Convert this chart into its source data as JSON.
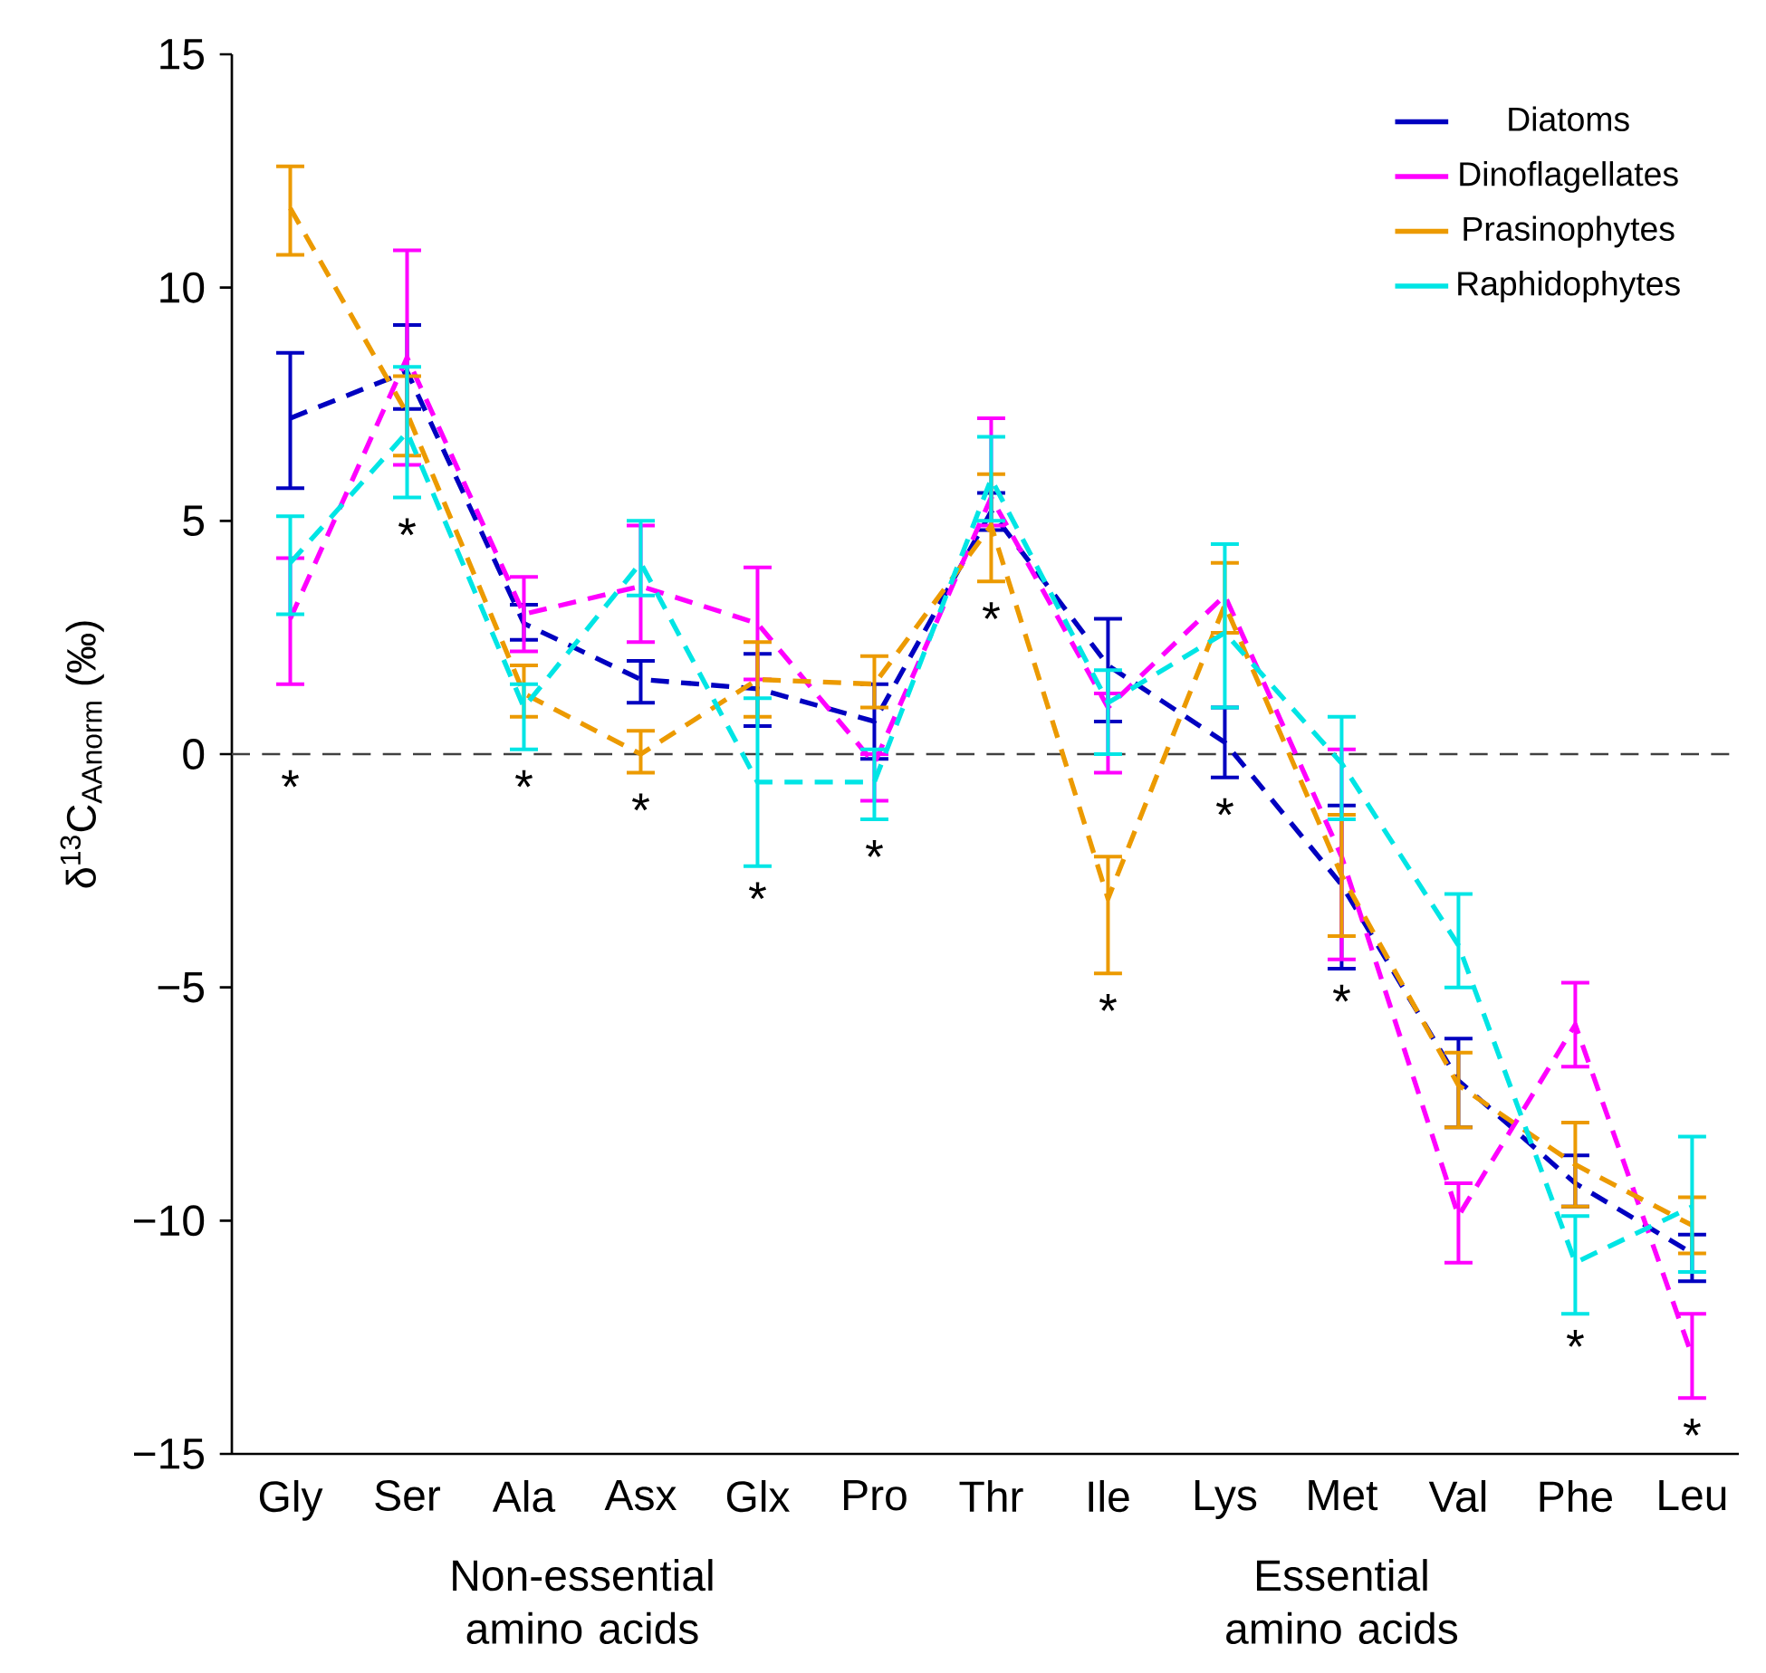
{
  "chart_data": {
    "type": "line",
    "ylabel": "δ$^{13}$C$_{AAnorm}$ (‰)",
    "categories": [
      "Gly",
      "Ser",
      "Ala",
      "Asx",
      "Glx",
      "Pro",
      "Thr",
      "Ile",
      "Lys",
      "Met",
      "Val",
      "Phe",
      "Leu"
    ],
    "ylim": [
      -15,
      15
    ],
    "yticks": [
      {
        "value": -15,
        "label": "−15"
      },
      {
        "value": -10,
        "label": "−10"
      },
      {
        "value": -5,
        "label": "−5"
      },
      0,
      5,
      10,
      15
    ],
    "line_style": "dashed",
    "marker": "none",
    "legend": "top right",
    "grid": false,
    "ref_lines": [
      {
        "axis": "y",
        "value": 0,
        "color": "#404040",
        "line_style": "dashed"
      }
    ],
    "series": [
      {
        "name": "Diatoms",
        "color": "#0000c0",
        "values": [
          7.2,
          8.2,
          2.8,
          1.6,
          1.4,
          0.7,
          5.2,
          1.9,
          0.25,
          -2.8,
          -7.0,
          -9.2,
          -10.7
        ],
        "errors": [
          [
            5.7,
            8.6
          ],
          [
            7.4,
            9.2
          ],
          [
            2.45,
            3.2
          ],
          [
            1.1,
            2.0
          ],
          [
            0.6,
            2.15
          ],
          [
            -0.1,
            1.5
          ],
          [
            4.8,
            5.6
          ],
          [
            0.7,
            2.9
          ],
          [
            -0.5,
            1.0
          ],
          [
            -4.6,
            -1.1
          ],
          [
            -8.0,
            -6.1
          ],
          [
            -9.7,
            -8.6
          ],
          [
            -11.3,
            -10.3
          ]
        ]
      },
      {
        "name": "Dinoflagellates",
        "color": "#ff00ff",
        "values": [
          2.9,
          8.5,
          3.0,
          3.6,
          2.8,
          -0.2,
          5.5,
          1.0,
          3.4,
          -2.2,
          -9.9,
          -5.8,
          -12.9
        ],
        "errors": [
          [
            1.5,
            4.2
          ],
          [
            6.2,
            10.8
          ],
          [
            2.2,
            3.8
          ],
          [
            2.4,
            4.9
          ],
          [
            1.6,
            4.0
          ],
          [
            -1.0,
            0.0
          ],
          [
            4.9,
            7.2
          ],
          [
            -0.4,
            1.3
          ],
          null,
          [
            -4.4,
            0.1
          ],
          [
            -10.9,
            -9.2
          ],
          [
            -6.7,
            -4.9
          ],
          [
            -13.8,
            -12.0
          ]
        ]
      },
      {
        "name": "Prasinophytes",
        "color": "#ec9a00",
        "values": [
          11.7,
          7.3,
          1.3,
          0.0,
          1.6,
          1.5,
          4.9,
          -3.1,
          3.2,
          -2.6,
          -7.1,
          -8.8,
          -10.1
        ],
        "errors": [
          [
            10.7,
            12.6
          ],
          [
            6.4,
            8.1
          ],
          [
            0.8,
            1.9
          ],
          [
            -0.4,
            0.5
          ],
          [
            0.8,
            2.4
          ],
          [
            1.0,
            2.1
          ],
          [
            3.7,
            6.0
          ],
          [
            -4.7,
            -2.2
          ],
          [
            2.6,
            4.1
          ],
          [
            -3.9,
            -1.3
          ],
          [
            -8.0,
            -6.4
          ],
          [
            -9.7,
            -7.9
          ],
          [
            -10.7,
            -9.5
          ]
        ]
      },
      {
        "name": "Raphidophytes",
        "color": "#00e5e5",
        "values": [
          4.1,
          6.9,
          1.0,
          4.1,
          -0.6,
          -0.6,
          5.9,
          1.1,
          2.6,
          -0.2,
          -4.1,
          -10.9,
          -9.7
        ],
        "errors": [
          [
            3.0,
            5.1
          ],
          [
            5.5,
            8.3
          ],
          [
            0.1,
            1.5
          ],
          [
            3.4,
            5.0
          ],
          [
            -2.4,
            1.2
          ],
          [
            -1.4,
            0.1
          ],
          [
            5.0,
            6.8
          ],
          [
            0.0,
            1.8
          ],
          [
            1.0,
            4.5
          ],
          [
            -1.4,
            0.8
          ],
          [
            -5.0,
            -3.0
          ],
          [
            -12.0,
            -9.9
          ],
          [
            -11.1,
            -8.2
          ]
        ]
      }
    ],
    "annotations": [
      "*",
      "*",
      "*",
      "*",
      "*",
      "*",
      "*",
      "*",
      "*",
      "*",
      "*",
      "*",
      "Non-essential amino acids",
      "Essential amino acids"
    ]
  }
}
